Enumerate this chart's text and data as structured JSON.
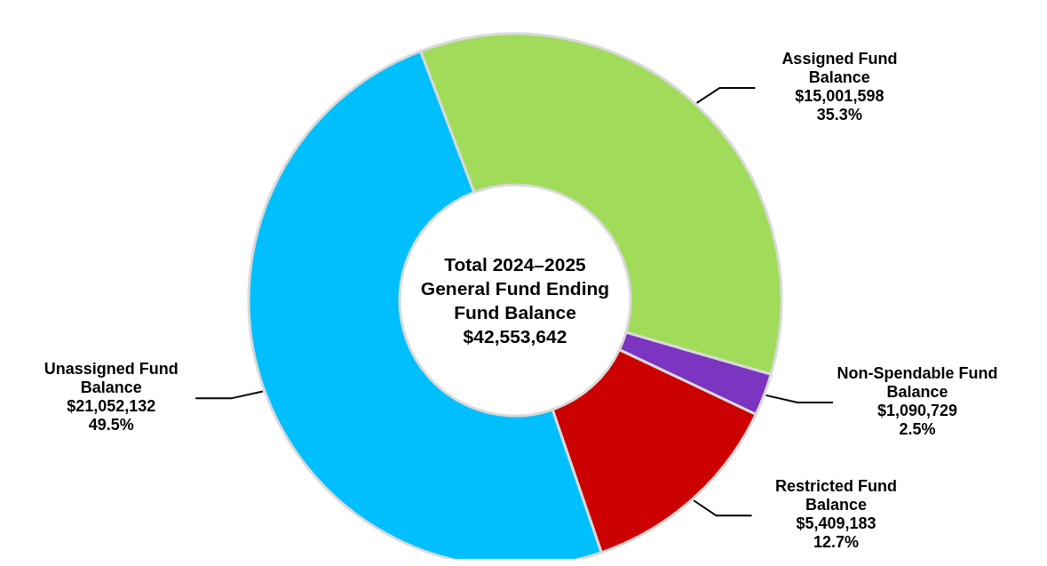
{
  "chart_data": {
    "type": "donut",
    "title": "Total 2024–2025 General Fund Ending Fund Balance",
    "annotations": [
      "$42,553,642"
    ],
    "categories": [
      "Assigned Fund Balance",
      "Non-Spendable Fund Balance",
      "Restricted Fund Balance",
      "Unassigned Fund Balance"
    ],
    "values": [
      15001598,
      1090729,
      5409183,
      21052132
    ],
    "colors": [
      "#a0dc5a",
      "#7b35c0",
      "#cc0000",
      "#00bfff"
    ],
    "value_labels": [
      "$15,001,598\n35.3%",
      "$1,090,729\n2.5%",
      "$5,409,183\n12.7%",
      "$21,052,132\n49.5%"
    ]
  }
}
